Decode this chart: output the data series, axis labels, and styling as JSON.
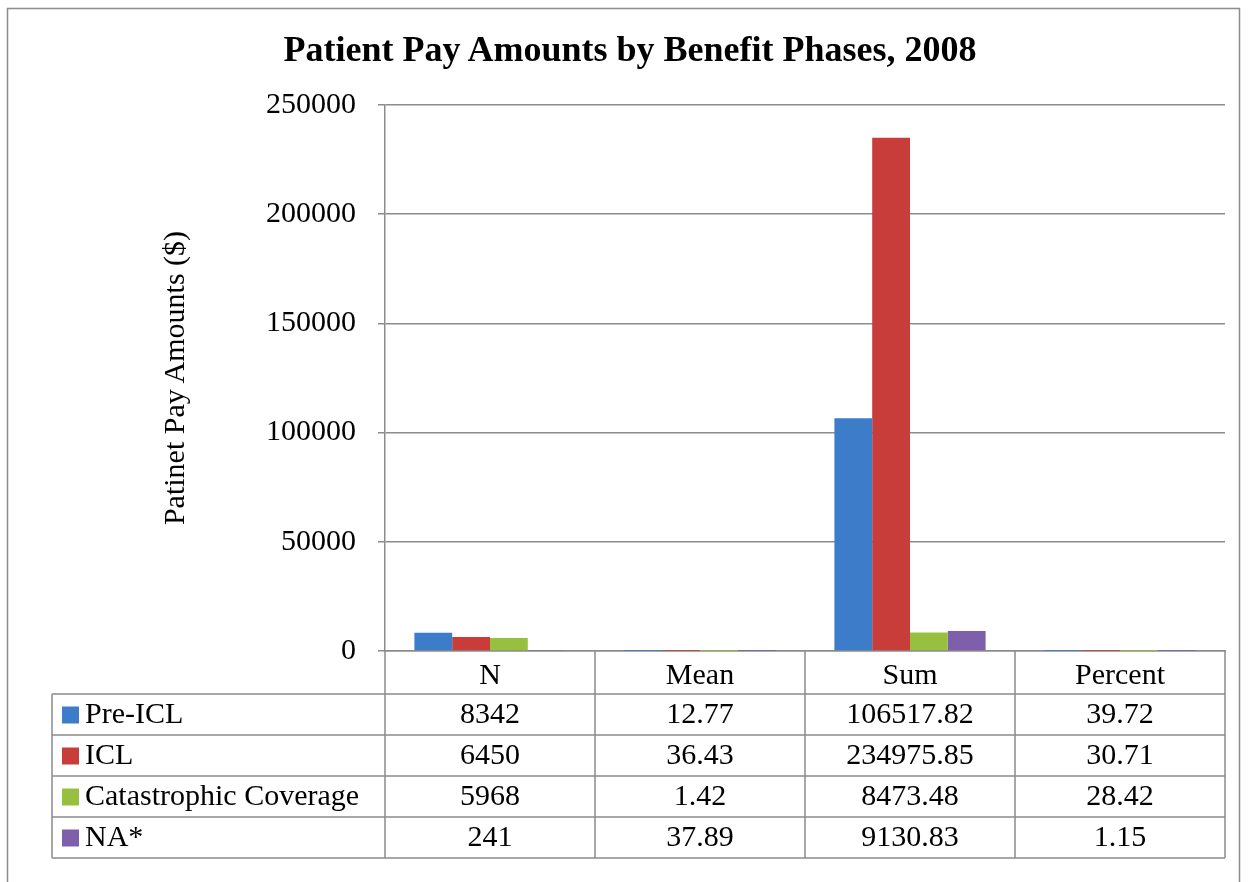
{
  "chart_data": {
    "type": "bar",
    "title": "Patient Pay Amounts by Benefit Phases, 2008",
    "ylabel": "Patinet Pay Amounts ($)",
    "categories": [
      "N",
      "Mean",
      "Sum",
      "Percent"
    ],
    "series": [
      {
        "name": "Pre-ICL",
        "color": "#3d7cc9",
        "values": [
          8342,
          12.77,
          106517.82,
          39.72
        ]
      },
      {
        "name": "ICL",
        "color": "#c83c3a",
        "values": [
          6450,
          36.43,
          234975.85,
          30.71
        ]
      },
      {
        "name": "Catastrophic Coverage",
        "color": "#98c040",
        "values": [
          5968,
          1.42,
          8473.48,
          28.42
        ]
      },
      {
        "name": "NA*",
        "color": "#7d5fab",
        "values": [
          241,
          37.89,
          9130.83,
          1.15
        ]
      }
    ],
    "ylim": [
      0,
      250000
    ],
    "yticks": [
      0,
      50000,
      100000,
      150000,
      200000,
      250000
    ],
    "grid": "y",
    "legend": "bottom left",
    "data_labels": true
  }
}
